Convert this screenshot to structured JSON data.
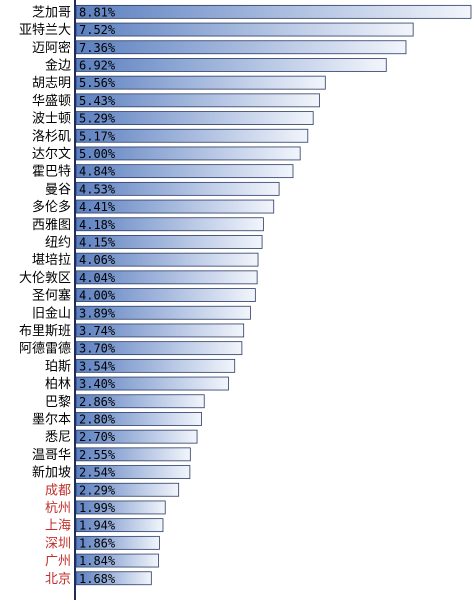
{
  "chart_data": {
    "type": "bar",
    "orientation": "horizontal",
    "title": "",
    "xlabel": "",
    "ylabel": "",
    "xlim": [
      0,
      8.81
    ],
    "grid": false,
    "legend": "none",
    "categories": [
      "芝加哥",
      "亚特兰大",
      "迈阿密",
      "金边",
      "胡志明",
      "华盛顿",
      "波士顿",
      "洛杉矶",
      "达尔文",
      "霍巴特",
      "曼谷",
      "多伦多",
      "西雅图",
      "纽约",
      "堪培拉",
      "大伦敦区",
      "圣何塞",
      "旧金山",
      "布里斯班",
      "阿德雷德",
      "珀斯",
      "柏林",
      "巴黎",
      "墨尔本",
      "悉尼",
      "温哥华",
      "新加坡",
      "成都",
      "杭州",
      "上海",
      "深圳",
      "广州",
      "北京"
    ],
    "values": [
      8.81,
      7.52,
      7.36,
      6.92,
      5.56,
      5.43,
      5.29,
      5.17,
      5.0,
      4.84,
      4.53,
      4.41,
      4.18,
      4.15,
      4.06,
      4.04,
      4.0,
      3.89,
      3.74,
      3.7,
      3.54,
      3.4,
      2.86,
      2.8,
      2.7,
      2.55,
      2.54,
      2.29,
      1.99,
      1.94,
      1.86,
      1.84,
      1.68
    ],
    "value_labels": [
      "8.81%",
      "7.52%",
      "7.36%",
      "6.92%",
      "5.56%",
      "5.43%",
      "5.29%",
      "5.17%",
      "5.00%",
      "4.84%",
      "4.53%",
      "4.41%",
      "4.18%",
      "4.15%",
      "4.06%",
      "4.04%",
      "4.00%",
      "3.89%",
      "3.74%",
      "3.70%",
      "3.54%",
      "3.40%",
      "2.86%",
      "2.80%",
      "2.70%",
      "2.55%",
      "2.54%",
      "2.29%",
      "1.99%",
      "1.94%",
      "1.86%",
      "1.84%",
      "1.68%"
    ],
    "highlighted_categories": [
      "成都",
      "杭州",
      "上海",
      "深圳",
      "广州",
      "北京"
    ],
    "colors": {
      "bar_dark": "#5b7fc0",
      "bar_light": "#f2f5fb",
      "bar_stroke": "#2a3a66",
      "axis": "#1f2d5a",
      "label_default": "#000000",
      "label_highlight": "#c0302b"
    }
  }
}
